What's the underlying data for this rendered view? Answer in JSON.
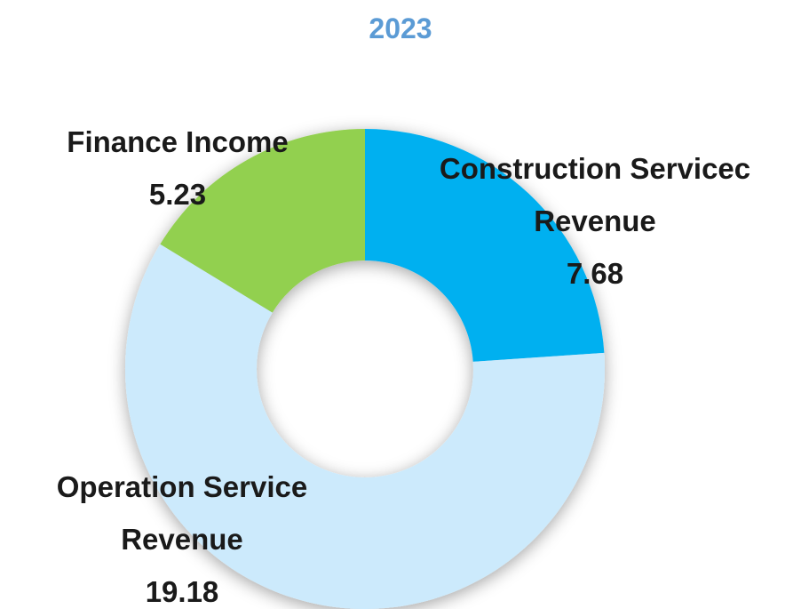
{
  "chart_data": {
    "type": "donut",
    "title": "2023",
    "categories": [
      "Construction Servicec Revenue",
      "Operation Service Revenue",
      "Finance Income"
    ],
    "values": [
      7.68,
      19.18,
      5.23
    ],
    "colors": [
      "#00b0f0",
      "#cceafc",
      "#92d050"
    ]
  }
}
